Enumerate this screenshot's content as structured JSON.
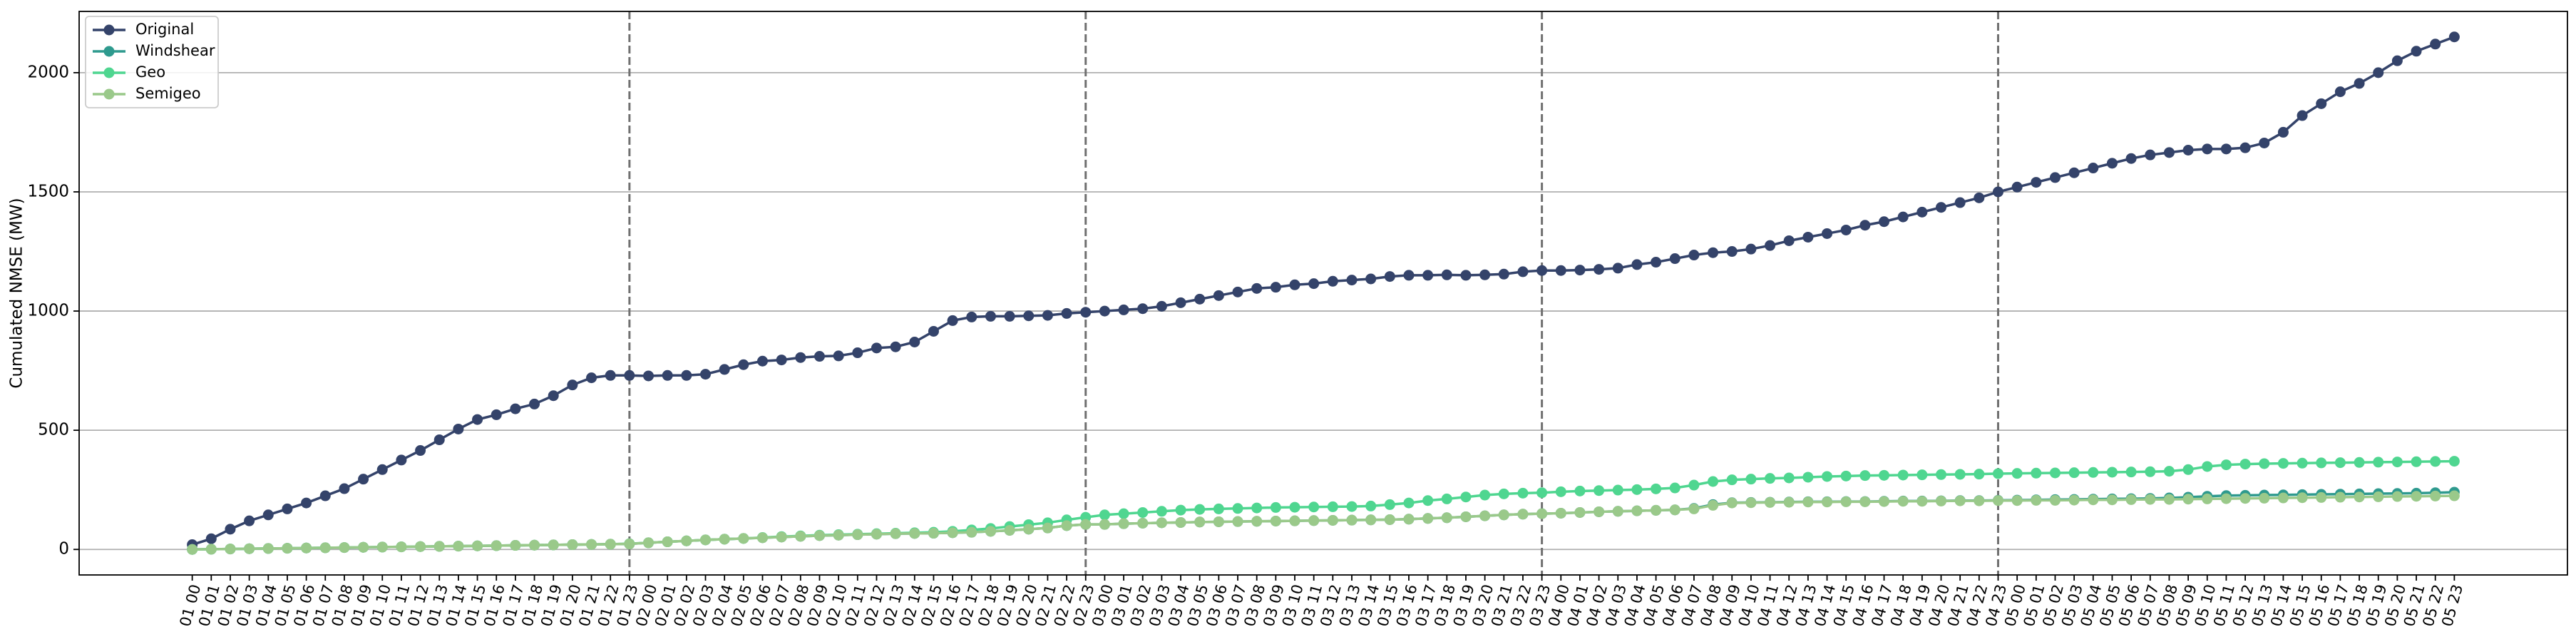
{
  "chart_data": {
    "type": "line",
    "ylabel": "Cumulated NMSE (MW)",
    "categories": [
      "01 00",
      "01 01",
      "01 02",
      "01 03",
      "01 04",
      "01 05",
      "01 06",
      "01 07",
      "01 08",
      "01 09",
      "01 10",
      "01 11",
      "01 12",
      "01 13",
      "01 14",
      "01 15",
      "01 16",
      "01 17",
      "01 18",
      "01 19",
      "01 20",
      "01 21",
      "01 22",
      "01 23",
      "02 00",
      "02 01",
      "02 02",
      "02 03",
      "02 04",
      "02 05",
      "02 06",
      "02 07",
      "02 08",
      "02 09",
      "02 10",
      "02 11",
      "02 12",
      "02 13",
      "02 14",
      "02 15",
      "02 16",
      "02 17",
      "02 18",
      "02 19",
      "02 20",
      "02 21",
      "02 22",
      "02 23",
      "03 00",
      "03 01",
      "03 02",
      "03 03",
      "03 04",
      "03 05",
      "03 06",
      "03 07",
      "03 08",
      "03 09",
      "03 10",
      "03 11",
      "03 12",
      "03 13",
      "03 14",
      "03 15",
      "03 16",
      "03 17",
      "03 18",
      "03 19",
      "03 20",
      "03 21",
      "03 22",
      "03 23",
      "04 00",
      "04 01",
      "04 02",
      "04 03",
      "04 04",
      "04 05",
      "04 06",
      "04 07",
      "04 08",
      "04 09",
      "04 10",
      "04 11",
      "04 12",
      "04 13",
      "04 14",
      "04 15",
      "04 16",
      "04 17",
      "04 18",
      "04 19",
      "04 20",
      "04 21",
      "04 22",
      "04 23",
      "05 00",
      "05 01",
      "05 02",
      "05 03",
      "05 04",
      "05 05",
      "05 06",
      "05 07",
      "05 08",
      "05 09",
      "05 10",
      "05 11",
      "05 12",
      "05 13",
      "05 14",
      "05 15",
      "05 16",
      "05 17",
      "05 18",
      "05 19",
      "05 20",
      "05 21",
      "05 22",
      "05 23"
    ],
    "series": [
      {
        "name": "Original",
        "color": "#34436a",
        "values": [
          20,
          45,
          85,
          120,
          145,
          170,
          195,
          225,
          255,
          295,
          335,
          375,
          415,
          460,
          505,
          545,
          565,
          590,
          610,
          645,
          690,
          720,
          730,
          730,
          728,
          730,
          730,
          735,
          755,
          775,
          790,
          795,
          805,
          810,
          812,
          825,
          845,
          850,
          870,
          915,
          960,
          975,
          978,
          978,
          980,
          982,
          990,
          995,
          1000,
          1005,
          1010,
          1020,
          1035,
          1050,
          1065,
          1080,
          1095,
          1100,
          1110,
          1115,
          1125,
          1130,
          1135,
          1145,
          1150,
          1150,
          1152,
          1150,
          1152,
          1155,
          1165,
          1170,
          1170,
          1172,
          1175,
          1180,
          1195,
          1205,
          1220,
          1235,
          1245,
          1250,
          1260,
          1275,
          1295,
          1310,
          1325,
          1340,
          1360,
          1375,
          1395,
          1415,
          1435,
          1455,
          1475,
          1500,
          1520,
          1540,
          1560,
          1580,
          1600,
          1620,
          1640,
          1655,
          1665,
          1675,
          1680,
          1680,
          1685,
          1705,
          1750,
          1820,
          1870,
          1920,
          1955,
          2000,
          2050,
          2090,
          2120,
          2150
        ]
      },
      {
        "name": "Windshear",
        "color": "#2e9a8e",
        "values": [
          0,
          1,
          2,
          3,
          4,
          5,
          6,
          7,
          8,
          9,
          10,
          11,
          12,
          13,
          14,
          15,
          16,
          17,
          18,
          19,
          20,
          21,
          22,
          23,
          28,
          32,
          36,
          40,
          43,
          46,
          49,
          52,
          55,
          58,
          60,
          62,
          64,
          66,
          67,
          68,
          70,
          72,
          76,
          80,
          85,
          90,
          100,
          105,
          105,
          108,
          110,
          112,
          113,
          115,
          116,
          117,
          118,
          119,
          120,
          121,
          122,
          123,
          124,
          125,
          127,
          130,
          133,
          137,
          141,
          145,
          148,
          150,
          152,
          155,
          158,
          160,
          162,
          164,
          166,
          172,
          188,
          196,
          197,
          198,
          199,
          200,
          200,
          201,
          201,
          202,
          203,
          203,
          204,
          205,
          205,
          206,
          207,
          208,
          209,
          210,
          211,
          212,
          213,
          214,
          216,
          219,
          223,
          226,
          227,
          228,
          229,
          230,
          231,
          232,
          233,
          234,
          235,
          236,
          238,
          240
        ]
      },
      {
        "name": "Geo",
        "color": "#4fd690",
        "values": [
          0,
          1,
          2,
          3,
          4,
          5,
          6,
          7,
          8,
          9,
          10,
          11,
          12,
          13,
          14,
          15,
          16,
          17,
          18,
          19,
          20,
          21,
          22,
          24,
          28,
          32,
          36,
          40,
          43,
          46,
          50,
          54,
          57,
          60,
          62,
          64,
          66,
          68,
          70,
          72,
          76,
          82,
          88,
          96,
          104,
          112,
          124,
          135,
          145,
          150,
          155,
          160,
          165,
          168,
          170,
          172,
          174,
          176,
          177,
          178,
          179,
          180,
          182,
          188,
          195,
          205,
          212,
          220,
          228,
          233,
          236,
          238,
          242,
          245,
          247,
          249,
          251,
          254,
          258,
          270,
          285,
          292,
          295,
          298,
          300,
          303,
          306,
          308,
          310,
          311,
          312,
          313,
          314,
          315,
          316,
          318,
          319,
          320,
          321,
          322,
          323,
          324,
          325,
          326,
          328,
          335,
          348,
          355,
          358,
          360,
          361,
          362,
          363,
          364,
          365,
          366,
          367,
          368,
          369,
          370
        ]
      },
      {
        "name": "Semigeo",
        "color": "#9ac98a",
        "values": [
          0,
          1,
          2,
          3,
          4,
          5,
          6,
          7,
          8,
          9,
          10,
          11,
          12,
          13,
          14,
          15,
          16,
          17,
          18,
          19,
          20,
          21,
          22,
          23,
          28,
          32,
          36,
          40,
          43,
          46,
          49,
          52,
          55,
          58,
          60,
          62,
          64,
          66,
          67,
          68,
          70,
          72,
          76,
          80,
          85,
          90,
          100,
          105,
          105,
          108,
          110,
          112,
          113,
          115,
          116,
          117,
          118,
          119,
          120,
          121,
          122,
          123,
          124,
          125,
          127,
          130,
          133,
          137,
          141,
          145,
          148,
          150,
          152,
          155,
          158,
          160,
          162,
          164,
          166,
          170,
          185,
          195,
          196,
          197,
          198,
          199,
          199,
          200,
          200,
          201,
          202,
          202,
          203,
          204,
          204,
          205,
          205,
          206,
          206,
          207,
          208,
          208,
          209,
          210,
          210,
          211,
          212,
          213,
          214,
          215,
          216,
          217,
          218,
          219,
          220,
          221,
          222,
          223,
          224,
          225
        ]
      }
    ],
    "vlines": [
      23,
      47,
      71,
      95
    ],
    "ylim": [
      -107,
      2257
    ],
    "yticks": [
      0,
      500,
      1000,
      1500,
      2000
    ],
    "grid": true,
    "legend": "upper left"
  }
}
